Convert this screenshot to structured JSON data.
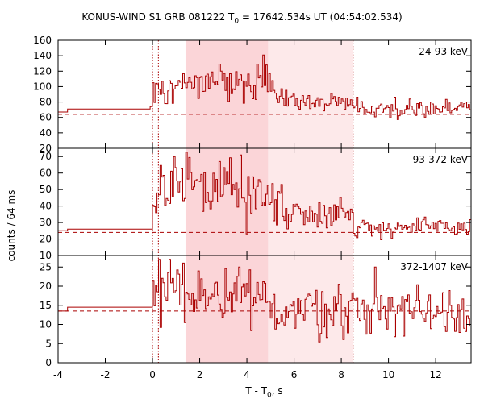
{
  "chart_data": {
    "type": "line",
    "title": "KONUS-WIND S1 GRB 081222",
    "title_t0_prefix": "T",
    "title_t0_sub": "0",
    "title_suffix": " = 17642.534s UT (04:54:02.534)",
    "xlabel_prefix": "T - T",
    "xlabel_sub": "0",
    "xlabel_suffix": ", s",
    "ylabel": "counts / 64 ms",
    "xlim": [
      -4,
      13.5
    ],
    "x_ticks": [
      "-4",
      "-2",
      "0",
      "2",
      "4",
      "6",
      "8",
      "10",
      "12"
    ],
    "grid": false,
    "line_color": "#aa0000",
    "shade_light_color": "#fde9ea",
    "shade_dark_color": "#fbd5d8",
    "shaded_intervals": [
      {
        "from": 1.4,
        "to": 4.9,
        "shade": "dark"
      },
      {
        "from": 4.9,
        "to": 8.5,
        "shade": "light"
      }
    ],
    "vertical_markers": [
      0.0,
      0.25,
      8.5
    ],
    "panels": [
      {
        "label": "24-93 keV",
        "ylim": [
          20,
          160
        ],
        "y_ticks": [
          "20",
          "40",
          "60",
          "80",
          "100",
          "120",
          "140",
          "160"
        ],
        "background": 64,
        "pre_trigger_steps": [
          [
            -4.0,
            67
          ],
          [
            -3.6,
            71
          ],
          [
            -0.3,
            71
          ],
          [
            -0.1,
            74
          ]
        ],
        "segments": [
          {
            "from": 0.0,
            "to": 1.0,
            "mean": 95,
            "sd": 10
          },
          {
            "from": 1.0,
            "to": 4.8,
            "mean": 106,
            "sd": 10
          },
          {
            "from": 4.8,
            "to": 5.1,
            "mean": 112,
            "sd": 12
          },
          {
            "from": 5.1,
            "to": 6.0,
            "mean": 88,
            "sd": 7
          },
          {
            "from": 6.0,
            "to": 8.5,
            "mean": 80,
            "sd": 6
          },
          {
            "from": 8.5,
            "to": 13.5,
            "mean": 72,
            "sd": 6
          }
        ],
        "peaks": [
          [
            4.73,
            141
          ],
          [
            4.81,
            128
          ],
          [
            1.12,
            108
          ]
        ]
      },
      {
        "label": "93-372 keV",
        "ylim": [
          10,
          75
        ],
        "y_ticks": [
          "10",
          "20",
          "30",
          "40",
          "50",
          "60",
          "70"
        ],
        "background": 24,
        "pre_trigger_steps": [
          [
            -4.0,
            25
          ],
          [
            -3.6,
            26
          ],
          [
            -0.3,
            26
          ]
        ],
        "segments": [
          {
            "from": 0.0,
            "to": 0.3,
            "mean": 38,
            "sd": 5
          },
          {
            "from": 0.3,
            "to": 3.5,
            "mean": 53,
            "sd": 8
          },
          {
            "from": 3.5,
            "to": 5.5,
            "mean": 46,
            "sd": 9
          },
          {
            "from": 5.5,
            "to": 8.5,
            "mean": 36,
            "sd": 4
          },
          {
            "from": 8.5,
            "to": 13.5,
            "mean": 27,
            "sd": 3
          }
        ],
        "peaks": [
          [
            0.96,
            70
          ],
          [
            3.75,
            71
          ],
          [
            2.85,
            67
          ]
        ]
      },
      {
        "label": "372-1407 keV",
        "ylim": [
          0,
          28
        ],
        "y_ticks": [
          "0",
          "5",
          "10",
          "15",
          "20",
          "25"
        ],
        "background": 13.5,
        "pre_trigger_steps": [
          [
            -4.0,
            13.5
          ],
          [
            -3.6,
            14.5
          ],
          [
            -0.3,
            14.5
          ]
        ],
        "segments": [
          {
            "from": 0.0,
            "to": 1.5,
            "mean": 19,
            "sd": 4.5
          },
          {
            "from": 1.5,
            "to": 5.0,
            "mean": 16,
            "sd": 4
          },
          {
            "from": 5.0,
            "to": 13.5,
            "mean": 14,
            "sd": 3.5
          }
        ],
        "peaks": [
          [
            0.3,
            27
          ],
          [
            0.75,
            27
          ],
          [
            3.7,
            25
          ],
          [
            9.45,
            25
          ]
        ]
      }
    ]
  }
}
